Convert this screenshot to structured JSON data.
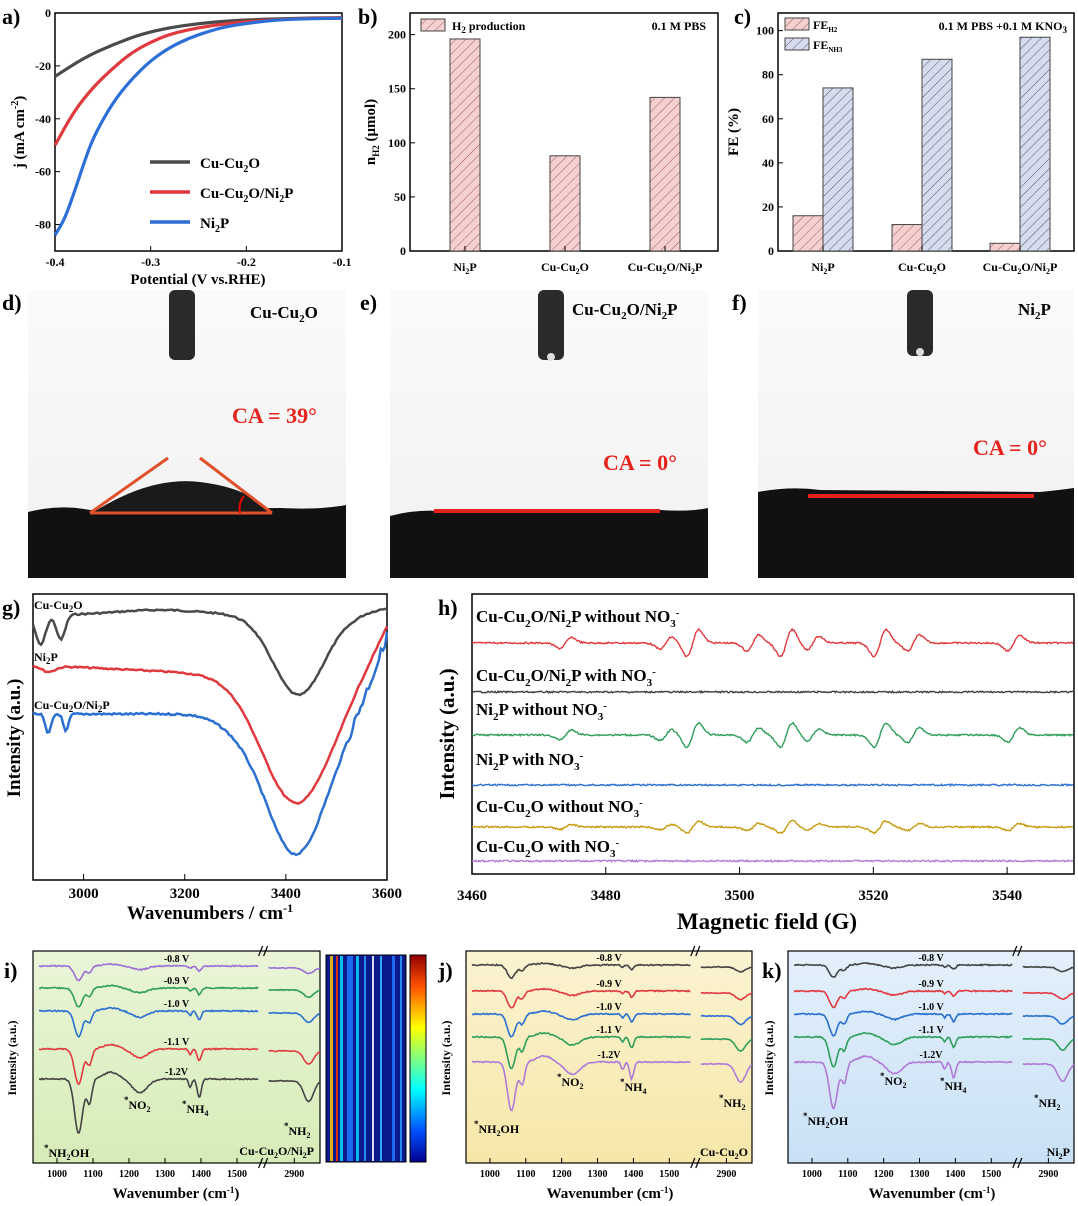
{
  "panels": {
    "a": "a)",
    "b": "b)",
    "c": "c)",
    "d": "d)",
    "e": "e)",
    "f": "f)",
    "g": "g)",
    "h": "h)",
    "i": "i)",
    "j": "j)",
    "k": "k)"
  },
  "colors": {
    "cu": "#4a4a4a",
    "cuni": "#e0393e",
    "ni": "#2d6fd6",
    "green": "#2e9e5a",
    "blue": "#2b6fd0",
    "yellow": "#c89a10",
    "purple": "#b07ad8",
    "red": "#e33",
    "bar_fill": "#f4d0d0",
    "bar_fill2": "#d6dced"
  },
  "chart_data": [
    {
      "id": "a",
      "type": "line",
      "xlabel": "Potential (V vs.RHE)",
      "ylabel": "j (mA cm",
      "ylabel_sup": "-2",
      "ylabel_end": ")",
      "xlim": [
        -0.4,
        -0.1
      ],
      "ylim": [
        -90,
        0
      ],
      "xticks": [
        "-0.4",
        "-0.3",
        "-0.2",
        "-0.1"
      ],
      "yticks": [
        "0",
        "-20",
        "-40",
        "-60",
        "-80"
      ],
      "series": [
        {
          "name": "Cu-Cu₂O",
          "color": "#4a4a4a",
          "x": [
            -0.4,
            -0.37,
            -0.34,
            -0.31,
            -0.28,
            -0.25,
            -0.22,
            -0.19,
            -0.16,
            -0.13,
            -0.1
          ],
          "y": [
            -24,
            -17,
            -12,
            -8,
            -5.5,
            -4,
            -3,
            -2.5,
            -2.1,
            -1.9,
            -1.8
          ]
        },
        {
          "name": "Cu-Cu₂O/Ni₂P",
          "color": "#e0393e",
          "x": [
            -0.4,
            -0.38,
            -0.36,
            -0.34,
            -0.32,
            -0.3,
            -0.28,
            -0.25,
            -0.22,
            -0.19,
            -0.16,
            -0.13,
            -0.1
          ],
          "y": [
            -50,
            -37,
            -28,
            -21,
            -15,
            -11,
            -8,
            -5.5,
            -4,
            -3,
            -2.4,
            -2,
            -1.9
          ]
        },
        {
          "name": "Ni₂P",
          "color": "#2d6fd6",
          "x": [
            -0.4,
            -0.39,
            -0.38,
            -0.37,
            -0.36,
            -0.34,
            -0.32,
            -0.3,
            -0.28,
            -0.26,
            -0.24,
            -0.22,
            -0.2,
            -0.18,
            -0.16,
            -0.13,
            -0.1
          ],
          "y": [
            -84,
            -78,
            -68,
            -57,
            -47,
            -34,
            -25,
            -18,
            -13,
            -9.5,
            -7,
            -5,
            -4,
            -3,
            -2.5,
            -2.1,
            -2
          ]
        }
      ],
      "legend": [
        "Cu-Cu",
        "2",
        "O",
        "Cu-Cu",
        "2",
        "O/Ni",
        "2",
        "P",
        "Ni",
        "2",
        "P"
      ]
    },
    {
      "id": "b",
      "type": "bar",
      "title": "0.1 M PBS",
      "legend": "H",
      "legend_sub": "2",
      "legend_end": " production",
      "categories": [
        "Ni2P",
        "Cu-Cu2O",
        "Cu-Cu2O/Ni2P"
      ],
      "values": [
        196,
        88,
        142
      ],
      "ylim": [
        0,
        220
      ],
      "yticks": [
        "0",
        "50",
        "100",
        "150",
        "200"
      ],
      "ylabel": "n",
      "ylabel_sub": "H2",
      "ylabel_end": " (μmol)"
    },
    {
      "id": "c",
      "type": "bar",
      "title": "0.1 M PBS +0.1 M KNO",
      "title_sub": "3",
      "categories": [
        "Ni2P",
        "Cu-Cu2O",
        "Cu-Cu2O/Ni2P"
      ],
      "series": [
        {
          "name": "FE",
          "sub": "H2",
          "values": [
            16,
            12,
            3.5
          ]
        },
        {
          "name": "FE",
          "sub": "NH3",
          "values": [
            74,
            87,
            97
          ]
        }
      ],
      "ylim": [
        0,
        108
      ],
      "yticks": [
        "0",
        "20",
        "40",
        "60",
        "80",
        "100"
      ],
      "ylabel": "FE (%)"
    },
    {
      "id": "g",
      "type": "line",
      "xlabel": "Wavenumbers / cm",
      "xlabel_sup": "-1",
      "ylabel": "Intensity (a.u.)",
      "xlim": [
        2900,
        3600
      ],
      "xticks": [
        "3000",
        "3200",
        "3400",
        "3600"
      ],
      "series": [
        {
          "name": "Cu-Cu₂O"
        },
        {
          "name": "Ni₂P"
        },
        {
          "name": "Cu-Cu₂O/Ni₂P"
        }
      ]
    },
    {
      "id": "h",
      "type": "line",
      "xlabel": "Magnetic field (G)",
      "ylabel": "Intensity (a.u.)",
      "xlim": [
        3460,
        3550
      ],
      "xticks": [
        "3460",
        "3480",
        "3500",
        "3520",
        "3540"
      ],
      "series": [
        {
          "name": "Cu-Cu2O/Ni2P without NO3-",
          "lbl": "Cu-Cu",
          "lbl2": "O/Ni",
          "lbl3": "P without NO"
        },
        {
          "name": "Cu-Cu2O/Ni2P with NO3-",
          "lbl3": "P with NO"
        },
        {
          "name": "Ni2P without NO3-",
          "lbl": "Ni",
          "lbl3": "P without NO"
        },
        {
          "name": "Ni2P with NO3-",
          "lbl3": "P with NO"
        },
        {
          "name": "Cu-Cu2O without NO3-",
          "lbl3": "O without NO"
        },
        {
          "name": "Cu-Cu2O with NO3-",
          "lbl3": "O with NO"
        }
      ],
      "peaks_G": [
        3474,
        3489,
        3493,
        3502,
        3507,
        3511,
        3521,
        3526,
        3541
      ]
    },
    {
      "id": "i",
      "type": "line",
      "xlabel": "Wavenumber (cm",
      "xlabel_sup": "-1",
      "xlabel_end": ")",
      "ylabel": "Intensity (a.u.)",
      "sample": "Cu-Cu2O/Ni2P",
      "potentials": [
        "-0.8 V",
        "-0.9 V",
        "-1.0 V",
        "-1.1 V",
        "-1.2V"
      ],
      "xticks": [
        "1000",
        "1100",
        "1200",
        "1300",
        "1400",
        "1500",
        "2900"
      ],
      "annotations": [
        "NH2OH",
        "NO2",
        "NH4",
        "NH2"
      ]
    },
    {
      "id": "j",
      "type": "line",
      "sample": "Cu-Cu2O",
      "potentials": [
        "-0.8 V",
        "-0.9 V",
        "-1.0 V",
        "-1.1 V",
        "-1.2V"
      ],
      "xticks": [
        "1000",
        "1100",
        "1200",
        "1300",
        "1400",
        "1500",
        "2900"
      ]
    },
    {
      "id": "k",
      "type": "line",
      "sample": "Ni2P",
      "potentials": [
        "-0.8 V",
        "-0.9 V",
        "-1.0 V",
        "-1.1 V",
        "-1.2V"
      ],
      "xticks": [
        "1000",
        "1100",
        "1200",
        "1300",
        "1400",
        "1500",
        "2900"
      ]
    }
  ],
  "photos": {
    "d": {
      "sample": "Cu-Cu",
      "sub": "2",
      "end": "O",
      "ca": "CA = 39°"
    },
    "e": {
      "sample": "Cu-Cu",
      "sub": "2",
      "end": "O/Ni",
      "sub2": "2",
      "end2": "P",
      "ca": "CA = 0°"
    },
    "f": {
      "sample": "Ni",
      "sub": "2",
      "end": "P",
      "ca": "CA = 0°"
    }
  },
  "labels": {
    "star": "*",
    "nh2oh": "NH",
    "nh2oh_sub": "2",
    "nh2oh_end": "OH",
    "no2": "NO",
    "no2_sub": "2",
    "nh4": "NH",
    "nh4_sub": "4",
    "nh2": "NH",
    "nh2_sub": "2",
    "sample_i": "Cu-Cu",
    "sample_i_sub": "2",
    "sample_i_mid": "O/Ni",
    "sample_i_sub2": "2",
    "sample_i_end": "P",
    "sample_j": "Cu-Cu",
    "sample_j_sub": "2",
    "sample_j_end": "O",
    "sample_k": "Ni",
    "sample_k_sub": "2",
    "sample_k_end": "P",
    "sub2": "2",
    "sub3": "3",
    "sup_minus": "-",
    "cat_ni": "Ni",
    "cat_cu": "Cu-Cu",
    "cat_o": "O",
    "cat_cuni_mid": "O/Ni",
    "cat_p": "P",
    "h_lbl_cu": "Cu-Cu",
    "h_lbl_o_ni": "O/Ni",
    "h_lbl_ni": "Ni",
    "h_lbl_no": "NO"
  }
}
